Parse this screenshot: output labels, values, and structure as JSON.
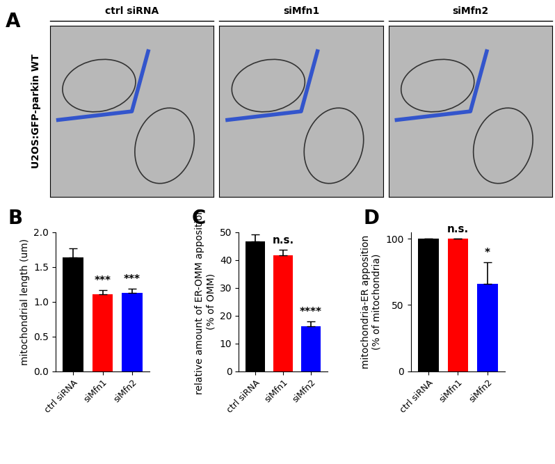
{
  "image_panel": {
    "panel": "A",
    "row_label": "U2OS:GFP-parkin WT",
    "columns": [
      "ctrl siRNA",
      "siMfn1",
      "siMfn2"
    ]
  },
  "chart_data": [
    {
      "type": "bar",
      "panel": "B",
      "y_label": "mitochondrial length (um)",
      "categories": [
        "ctrl siRNA",
        "siMfn1",
        "siMfn2"
      ],
      "values": [
        1.64,
        1.11,
        1.13
      ],
      "errors": [
        0.13,
        0.06,
        0.06
      ],
      "colors": [
        "#000000",
        "#ff0000",
        "#0000ff"
      ],
      "annotations": [
        null,
        "***",
        "***"
      ],
      "ylim": [
        0,
        2.0
      ],
      "yticks": [
        {
          "value": 0,
          "label": "0.0"
        },
        {
          "value": 0.5,
          "label": "0.5"
        },
        {
          "value": 1.0,
          "label": "1.0"
        },
        {
          "value": 1.5,
          "label": "1.5"
        },
        {
          "value": 2.0,
          "label": "2.0"
        }
      ]
    },
    {
      "type": "bar",
      "panel": "C",
      "y_label": "relative amount of ER-OMM apposition\n(% of OMM)",
      "categories": [
        "ctrl siRNA",
        "siMfn1",
        "siMfn2"
      ],
      "values": [
        46.7,
        41.6,
        16.1
      ],
      "errors": [
        2.4,
        2.0,
        1.7
      ],
      "colors": [
        "#000000",
        "#ff0000",
        "#0000ff"
      ],
      "annotations": [
        null,
        "n.s.",
        "****"
      ],
      "ylim": [
        0,
        50
      ],
      "yticks": [
        0,
        10,
        20,
        30,
        40,
        50
      ]
    },
    {
      "type": "bar",
      "panel": "D",
      "y_label": "mitochondria-ER apposition\n(% of mitochondria)",
      "categories": [
        "ctrl siRNA",
        "siMfn1",
        "siMfn2"
      ],
      "values": [
        100,
        100,
        66
      ],
      "errors": [
        0,
        0,
        16
      ],
      "colors": [
        "#000000",
        "#ff0000",
        "#0000ff"
      ],
      "annotations": [
        null,
        "n.s.",
        "*"
      ],
      "ylim": [
        0,
        105
      ],
      "yticks": [
        0,
        50,
        100
      ]
    }
  ]
}
